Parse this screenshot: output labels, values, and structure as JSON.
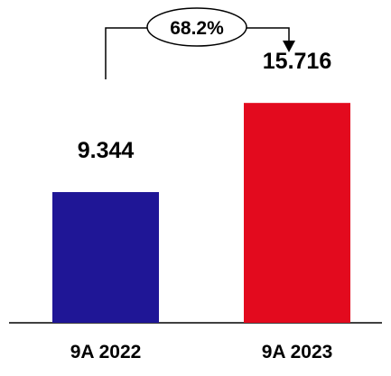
{
  "chart_data": {
    "type": "bar",
    "categories": [
      "9A 2022",
      "9A 2023"
    ],
    "values": [
      9.344,
      15.716
    ],
    "value_labels": [
      "9.344",
      "15.716"
    ],
    "colors": [
      "#1f1696",
      "#e30a1e"
    ],
    "annotation": {
      "text": "68.2%",
      "from": "9A 2022",
      "to": "9A 2023"
    },
    "ylim": [
      0,
      16.5
    ],
    "grid": false,
    "legend": "none"
  }
}
